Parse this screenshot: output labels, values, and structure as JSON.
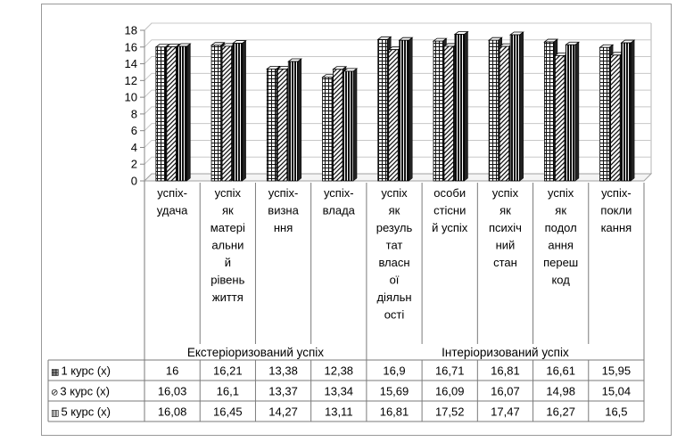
{
  "chart_data": {
    "type": "bar",
    "ylim": [
      0,
      18
    ],
    "y_ticks": [
      "0",
      "2",
      "4",
      "6",
      "8",
      "10",
      "12",
      "14",
      "16",
      "18"
    ],
    "grid": true,
    "categories": [
      [
        "успіх-",
        "удача"
      ],
      [
        "успіх",
        "як",
        "матері",
        "альни",
        "й",
        "рівень",
        "життя"
      ],
      [
        "успіх-",
        "визна",
        "ння"
      ],
      [
        "успіх-",
        "влада"
      ],
      [
        "успіх",
        "як",
        "резуль",
        "тат",
        "власн",
        "ої",
        "діяльн",
        "ості"
      ],
      [
        "особи",
        "стісни",
        "й успіх"
      ],
      [
        "успіх",
        "як",
        "психіч",
        "ний",
        "стан"
      ],
      [
        "успіх",
        "як",
        "подол",
        "ання",
        "переш",
        "код"
      ],
      [
        "успіх-",
        "покли",
        "кання"
      ]
    ],
    "groups": [
      {
        "label": "Екстеріоризований успіх",
        "span": [
          0,
          3
        ]
      },
      {
        "label": "Інтеріоризований успіх",
        "span": [
          4,
          8
        ]
      }
    ],
    "series": [
      {
        "name": "1 курс (x)",
        "marker": "▦",
        "pattern": "grid",
        "values": [
          "16",
          "16,21",
          "13,38",
          "12,38",
          "16,9",
          "16,71",
          "16,81",
          "16,61",
          "15,95"
        ],
        "num": [
          16,
          16.21,
          13.38,
          12.38,
          16.9,
          16.71,
          16.81,
          16.61,
          15.95
        ]
      },
      {
        "name": "3  курс (x)",
        "marker": "⊘",
        "pattern": "diagonal",
        "values": [
          "16,03",
          "16,1",
          "13,37",
          "13,34",
          "15,69",
          "16,09",
          "16,07",
          "14,98",
          "15,04"
        ],
        "num": [
          16.03,
          16.1,
          13.37,
          13.34,
          15.69,
          16.09,
          16.07,
          14.98,
          15.04
        ]
      },
      {
        "name": "5 курс (x)",
        "marker": "▥",
        "pattern": "vertical",
        "values": [
          "16,08",
          "16,45",
          "14,27",
          "13,11",
          "16,81",
          "17,52",
          "17,47",
          "16,27",
          "16,5"
        ],
        "num": [
          16.08,
          16.45,
          14.27,
          13.11,
          16.81,
          17.52,
          17.47,
          16.27,
          16.5
        ]
      }
    ]
  }
}
